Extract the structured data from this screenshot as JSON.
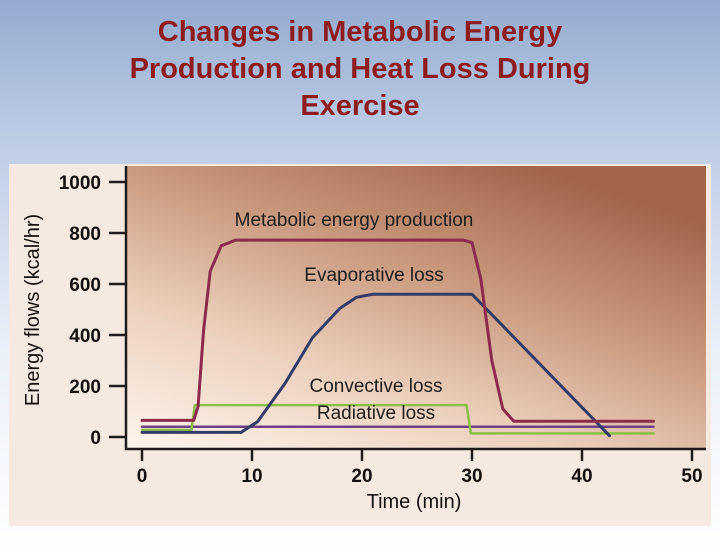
{
  "slide": {
    "title": "Changes in Metabolic Energy Production and Heat Loss During Exercise",
    "title_color": "#8e1c1e"
  },
  "chart_data": {
    "type": "line",
    "title": "Changes in Metabolic Energy Production and Heat Loss During Exercise",
    "xlabel": "Time (min)",
    "ylabel": "Energy flows (kcal/hr)",
    "xlim": [
      0,
      50
    ],
    "ylim": [
      0,
      1000
    ],
    "x_ticks": [
      0,
      10,
      20,
      30,
      40,
      50
    ],
    "y_ticks": [
      0,
      200,
      400,
      600,
      800,
      1000
    ],
    "grid": false,
    "legend": "inline-labels",
    "background": "gradient-white-to-brown",
    "series": [
      {
        "id": "metabolic",
        "name": "Metabolic energy production",
        "color": "#8c2a4d",
        "width": 3,
        "points": [
          [
            0,
            65
          ],
          [
            4.7,
            65
          ],
          [
            5.1,
            120
          ],
          [
            5.6,
            420
          ],
          [
            6.2,
            650
          ],
          [
            7.2,
            750
          ],
          [
            8.5,
            772
          ],
          [
            29.2,
            772
          ],
          [
            30,
            762
          ],
          [
            30.8,
            620
          ],
          [
            31.8,
            300
          ],
          [
            32.8,
            110
          ],
          [
            33.8,
            62
          ],
          [
            46.5,
            62
          ]
        ]
      },
      {
        "id": "evaporative",
        "name": "Evaporative loss",
        "color": "#323c68",
        "width": 3,
        "points": [
          [
            0,
            18
          ],
          [
            9,
            18
          ],
          [
            10.5,
            60
          ],
          [
            13,
            210
          ],
          [
            15.5,
            390
          ],
          [
            18,
            505
          ],
          [
            19.5,
            548
          ],
          [
            21,
            560
          ],
          [
            30,
            560
          ],
          [
            42.5,
            5
          ]
        ]
      },
      {
        "id": "convective",
        "name": "Convective loss",
        "color": "#8abf4a",
        "width": 2.5,
        "points": [
          [
            0,
            28
          ],
          [
            4.5,
            28
          ],
          [
            4.8,
            125
          ],
          [
            29.5,
            125
          ],
          [
            29.9,
            14
          ],
          [
            46.5,
            14
          ]
        ]
      },
      {
        "id": "radiative",
        "name": "Radiative loss",
        "color": "#6f4187",
        "width": 2.5,
        "points": [
          [
            0,
            40
          ],
          [
            46.5,
            40
          ]
        ]
      }
    ]
  }
}
